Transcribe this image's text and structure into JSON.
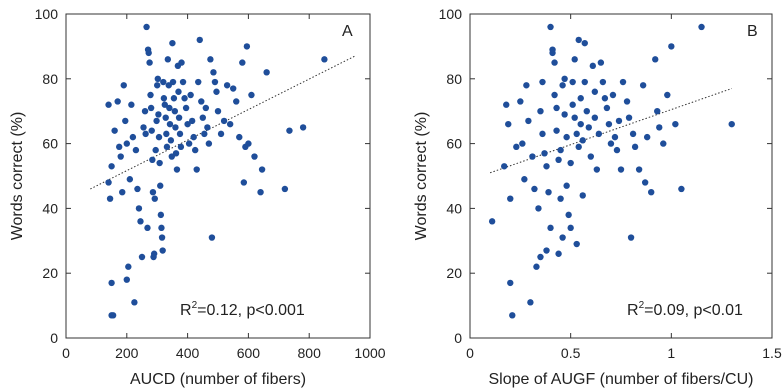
{
  "chart_data": [
    {
      "type": "scatter",
      "panel_label": "A",
      "xlabel": "AUCD (number of fibers)",
      "ylabel": "Words correct (%)",
      "xlim": [
        0,
        1000
      ],
      "ylim": [
        0,
        100
      ],
      "xticks": [
        0,
        200,
        400,
        600,
        800,
        1000
      ],
      "yticks": [
        0,
        20,
        40,
        60,
        80,
        100
      ],
      "grid": false,
      "annotation": {
        "r2_prefix": "R",
        "r2_sup": "2",
        "text": "=0.12, p<0.001"
      },
      "trendline": {
        "x": [
          80,
          950
        ],
        "y": [
          46,
          87
        ]
      },
      "points": [
        [
          140,
          72
        ],
        [
          150,
          53
        ],
        [
          140,
          48
        ],
        [
          145,
          43
        ],
        [
          150,
          17
        ],
        [
          150,
          7
        ],
        [
          155,
          7
        ],
        [
          160,
          64
        ],
        [
          170,
          73
        ],
        [
          175,
          59
        ],
        [
          180,
          56
        ],
        [
          185,
          45
        ],
        [
          190,
          78
        ],
        [
          195,
          67
        ],
        [
          200,
          60
        ],
        [
          200,
          18
        ],
        [
          205,
          22
        ],
        [
          210,
          49
        ],
        [
          215,
          72
        ],
        [
          220,
          62
        ],
        [
          225,
          11
        ],
        [
          230,
          58
        ],
        [
          235,
          46
        ],
        [
          240,
          40
        ],
        [
          245,
          36
        ],
        [
          250,
          25
        ],
        [
          255,
          65
        ],
        [
          260,
          70
        ],
        [
          262,
          63
        ],
        [
          265,
          96
        ],
        [
          268,
          34
        ],
        [
          270,
          89
        ],
        [
          272,
          88
        ],
        [
          275,
          85
        ],
        [
          278,
          75
        ],
        [
          280,
          71
        ],
        [
          282,
          64
        ],
        [
          284,
          55
        ],
        [
          286,
          45
        ],
        [
          288,
          25
        ],
        [
          290,
          26
        ],
        [
          292,
          43
        ],
        [
          295,
          58
        ],
        [
          298,
          67
        ],
        [
          300,
          78
        ],
        [
          302,
          80
        ],
        [
          304,
          69
        ],
        [
          306,
          62
        ],
        [
          308,
          54
        ],
        [
          310,
          47
        ],
        [
          312,
          38
        ],
        [
          314,
          34
        ],
        [
          316,
          31
        ],
        [
          318,
          27
        ],
        [
          320,
          79
        ],
        [
          322,
          74
        ],
        [
          325,
          72
        ],
        [
          328,
          68
        ],
        [
          330,
          63
        ],
        [
          332,
          59
        ],
        [
          335,
          86
        ],
        [
          338,
          78
        ],
        [
          340,
          71
        ],
        [
          342,
          66
        ],
        [
          345,
          61
        ],
        [
          348,
          56
        ],
        [
          350,
          91
        ],
        [
          352,
          79
        ],
        [
          355,
          74
        ],
        [
          358,
          70
        ],
        [
          360,
          65
        ],
        [
          362,
          57
        ],
        [
          365,
          52
        ],
        [
          368,
          84
        ],
        [
          370,
          76
        ],
        [
          372,
          68
        ],
        [
          375,
          63
        ],
        [
          378,
          59
        ],
        [
          380,
          85
        ],
        [
          385,
          79
        ],
        [
          390,
          74
        ],
        [
          395,
          71
        ],
        [
          400,
          66
        ],
        [
          405,
          60
        ],
        [
          410,
          75
        ],
        [
          415,
          67
        ],
        [
          420,
          62
        ],
        [
          425,
          58
        ],
        [
          430,
          52
        ],
        [
          435,
          79
        ],
        [
          440,
          92
        ],
        [
          445,
          73
        ],
        [
          450,
          68
        ],
        [
          455,
          63
        ],
        [
          460,
          71
        ],
        [
          465,
          65
        ],
        [
          470,
          60
        ],
        [
          475,
          86
        ],
        [
          480,
          31
        ],
        [
          485,
          82
        ],
        [
          490,
          79
        ],
        [
          495,
          76
        ],
        [
          500,
          70
        ],
        [
          510,
          63
        ],
        [
          520,
          67
        ],
        [
          530,
          78
        ],
        [
          540,
          66
        ],
        [
          550,
          77
        ],
        [
          560,
          73
        ],
        [
          570,
          62
        ],
        [
          580,
          85
        ],
        [
          585,
          48
        ],
        [
          590,
          59
        ],
        [
          595,
          90
        ],
        [
          600,
          60
        ],
        [
          610,
          75
        ],
        [
          620,
          56
        ],
        [
          640,
          45
        ],
        [
          645,
          52
        ],
        [
          660,
          82
        ],
        [
          720,
          46
        ],
        [
          735,
          64
        ],
        [
          780,
          65
        ],
        [
          850,
          86
        ]
      ]
    },
    {
      "type": "scatter",
      "panel_label": "B",
      "xlabel": "Slope of AUGF (number of fibers/CU)",
      "ylabel": "Words correct (%)",
      "xlim": [
        0,
        1.5
      ],
      "ylim": [
        0,
        100
      ],
      "xticks": [
        0,
        0.5,
        1,
        1.5
      ],
      "xtick_labels": [
        "0",
        "0.5",
        "1",
        "1.5"
      ],
      "yticks": [
        0,
        20,
        40,
        60,
        80,
        100
      ],
      "grid": false,
      "annotation": {
        "r2_prefix": "R",
        "r2_sup": "2",
        "text": "=0.09, p<0.01"
      },
      "trendline": {
        "x": [
          0.1,
          1.3
        ],
        "y": [
          51,
          77
        ]
      },
      "points": [
        [
          0.11,
          36
        ],
        [
          0.17,
          53
        ],
        [
          0.18,
          72
        ],
        [
          0.19,
          66
        ],
        [
          0.2,
          43
        ],
        [
          0.2,
          17
        ],
        [
          0.21,
          7
        ],
        [
          0.23,
          59
        ],
        [
          0.25,
          73
        ],
        [
          0.26,
          60
        ],
        [
          0.27,
          49
        ],
        [
          0.28,
          78
        ],
        [
          0.29,
          67
        ],
        [
          0.3,
          11
        ],
        [
          0.31,
          56
        ],
        [
          0.32,
          46
        ],
        [
          0.33,
          22
        ],
        [
          0.34,
          40
        ],
        [
          0.35,
          70
        ],
        [
          0.35,
          25
        ],
        [
          0.36,
          79
        ],
        [
          0.36,
          63
        ],
        [
          0.37,
          57
        ],
        [
          0.38,
          53
        ],
        [
          0.38,
          27
        ],
        [
          0.39,
          45
        ],
        [
          0.4,
          96
        ],
        [
          0.4,
          34
        ],
        [
          0.41,
          89
        ],
        [
          0.41,
          88
        ],
        [
          0.42,
          85
        ],
        [
          0.42,
          75
        ],
        [
          0.43,
          71
        ],
        [
          0.43,
          64
        ],
        [
          0.44,
          55
        ],
        [
          0.44,
          26
        ],
        [
          0.45,
          58
        ],
        [
          0.45,
          43
        ],
        [
          0.46,
          78
        ],
        [
          0.46,
          31
        ],
        [
          0.47,
          80
        ],
        [
          0.47,
          69
        ],
        [
          0.48,
          62
        ],
        [
          0.48,
          47
        ],
        [
          0.49,
          38
        ],
        [
          0.5,
          54
        ],
        [
          0.5,
          34
        ],
        [
          0.51,
          79
        ],
        [
          0.51,
          72
        ],
        [
          0.52,
          86
        ],
        [
          0.52,
          68
        ],
        [
          0.53,
          63
        ],
        [
          0.53,
          29
        ],
        [
          0.54,
          92
        ],
        [
          0.54,
          59
        ],
        [
          0.55,
          74
        ],
        [
          0.55,
          66
        ],
        [
          0.56,
          61
        ],
        [
          0.56,
          44
        ],
        [
          0.57,
          91
        ],
        [
          0.57,
          79
        ],
        [
          0.58,
          70
        ],
        [
          0.59,
          65
        ],
        [
          0.6,
          56
        ],
        [
          0.61,
          84
        ],
        [
          0.62,
          76
        ],
        [
          0.62,
          68
        ],
        [
          0.63,
          52
        ],
        [
          0.64,
          63
        ],
        [
          0.65,
          85
        ],
        [
          0.66,
          79
        ],
        [
          0.67,
          74
        ],
        [
          0.68,
          71
        ],
        [
          0.69,
          66
        ],
        [
          0.7,
          60
        ],
        [
          0.71,
          75
        ],
        [
          0.72,
          62
        ],
        [
          0.73,
          58
        ],
        [
          0.74,
          67
        ],
        [
          0.75,
          52
        ],
        [
          0.76,
          79
        ],
        [
          0.78,
          73
        ],
        [
          0.79,
          68
        ],
        [
          0.8,
          31
        ],
        [
          0.81,
          63
        ],
        [
          0.82,
          59
        ],
        [
          0.84,
          52
        ],
        [
          0.86,
          78
        ],
        [
          0.87,
          48
        ],
        [
          0.88,
          62
        ],
        [
          0.9,
          45
        ],
        [
          0.92,
          86
        ],
        [
          0.93,
          70
        ],
        [
          0.94,
          65
        ],
        [
          0.96,
          60
        ],
        [
          0.98,
          75
        ],
        [
          1.0,
          90
        ],
        [
          1.02,
          66
        ],
        [
          1.05,
          46
        ],
        [
          1.15,
          96
        ],
        [
          1.3,
          66
        ]
      ]
    }
  ]
}
